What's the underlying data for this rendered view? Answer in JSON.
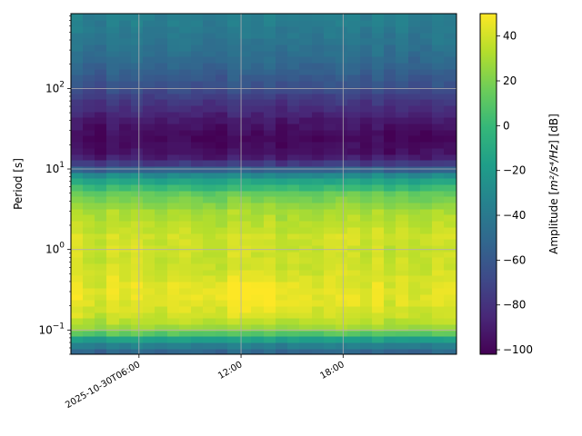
{
  "chart_data": {
    "type": "heatmap",
    "title": "",
    "xlabel": "",
    "ylabel": "Period [s]",
    "y_scale": "log",
    "ylim": [
      0.05,
      850
    ],
    "y_ticks": [
      {
        "value": 0.1,
        "base": "10",
        "exp": "−1"
      },
      {
        "value": 1,
        "base": "10",
        "exp": "0"
      },
      {
        "value": 10,
        "base": "10",
        "exp": "1"
      },
      {
        "value": 100,
        "base": "10",
        "exp": "2"
      }
    ],
    "x_axis_type": "time",
    "xlim": [
      "2025-10-30T02:00",
      "2025-10-31T00:40"
    ],
    "x_ticks": [
      {
        "value": "2025-10-30T06:00",
        "label": "2025-10-30T06:00"
      },
      {
        "value": "2025-10-30T12:00",
        "label": "12:00"
      },
      {
        "value": "2025-10-30T18:00",
        "label": "18:00"
      }
    ],
    "grid": true,
    "colormap": "viridis",
    "colorbar": {
      "label_text": "Amplitude [",
      "label_math": "m²/s⁴/Hz",
      "label_suffix": "] [dB]",
      "vmin": -102,
      "vmax": 50,
      "ticks": [
        "40",
        "20",
        "0",
        "−20",
        "−40",
        "−60",
        "−80",
        "−100"
      ],
      "tick_values": [
        40,
        20,
        0,
        -20,
        -40,
        -60,
        -80,
        -100
      ]
    },
    "time_bins": 32,
    "period_bins": 56,
    "amplitude_profile_db": [
      {
        "period": 0.05,
        "db": -58
      },
      {
        "period": 0.06,
        "db": -45
      },
      {
        "period": 0.075,
        "db": -22
      },
      {
        "period": 0.09,
        "db": 8
      },
      {
        "period": 0.11,
        "db": 28
      },
      {
        "period": 0.15,
        "db": 38
      },
      {
        "period": 0.25,
        "db": 44
      },
      {
        "period": 0.4,
        "db": 42
      },
      {
        "period": 0.7,
        "db": 38
      },
      {
        "period": 1.0,
        "db": 38
      },
      {
        "period": 1.5,
        "db": 39
      },
      {
        "period": 3,
        "db": 30
      },
      {
        "period": 5,
        "db": 14
      },
      {
        "period": 7,
        "db": -12
      },
      {
        "period": 9,
        "db": -35
      },
      {
        "period": 11,
        "db": -70
      },
      {
        "period": 15,
        "db": -94
      },
      {
        "period": 25,
        "db": -100
      },
      {
        "period": 40,
        "db": -92
      },
      {
        "period": 70,
        "db": -78
      },
      {
        "period": 120,
        "db": -62
      },
      {
        "period": 250,
        "db": -48
      },
      {
        "period": 500,
        "db": -40
      },
      {
        "period": 850,
        "db": -36
      }
    ],
    "peak": {
      "time": "2025-10-30T12:30",
      "period": 0.28,
      "db": 50
    }
  }
}
